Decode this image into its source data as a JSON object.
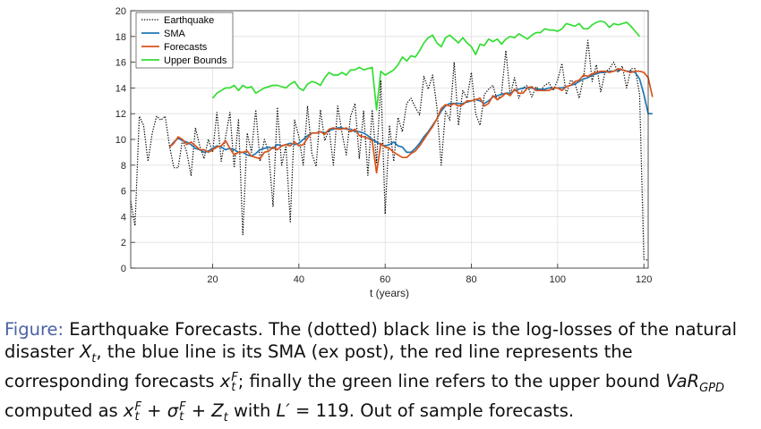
{
  "chart_data": {
    "type": "line",
    "xlabel": "t (years)",
    "ylabel": "",
    "xlim": [
      1,
      121
    ],
    "ylim": [
      0,
      20
    ],
    "x_ticks": [
      20,
      40,
      60,
      80,
      100,
      120
    ],
    "y_ticks": [
      0,
      2,
      4,
      6,
      8,
      10,
      12,
      14,
      16,
      18,
      20
    ],
    "grid": true,
    "legend_position": "top-left",
    "series": [
      {
        "name": "Earthquake",
        "color": "#000000",
        "style": "dotted",
        "x_start": 1,
        "values": [
          5.2,
          3.3,
          11.8,
          11.1,
          8.3,
          10.5,
          11.8,
          11.5,
          11.8,
          9.5,
          7.8,
          7.8,
          10.0,
          9.0,
          7.2,
          10.9,
          9.5,
          8.5,
          10.0,
          9.0,
          12.1,
          8.3,
          10.2,
          12.1,
          7.8,
          11.6,
          2.6,
          10.5,
          9.0,
          12.3,
          8.3,
          10.0,
          9.0,
          4.8,
          12.5,
          8.0,
          9.5,
          3.6,
          11.5,
          10.2,
          8.0,
          12.6,
          8.9,
          7.9,
          12.3,
          9.9,
          10.8,
          8.0,
          12.6,
          10.5,
          8.8,
          11.8,
          12.8,
          8.5,
          12.2,
          7.2,
          12.3,
          8.2,
          14.6,
          4.2,
          11.1,
          8.3,
          11.7,
          10.6,
          12.8,
          13.2,
          12.5,
          11.9,
          14.9,
          13.9,
          15.0,
          12.5,
          8.0,
          12.2,
          11.5,
          16.0,
          11.1,
          13.8,
          13.2,
          15.2,
          12.0,
          11.1,
          13.5,
          13.9,
          14.2,
          13.0,
          13.6,
          16.9,
          13.4,
          14.8,
          13.2,
          14.0,
          14.2,
          13.3,
          14.1,
          13.8,
          14.2,
          14.4,
          13.8,
          14.6,
          15.9,
          13.5,
          14.6,
          14.4,
          13.2,
          14.8,
          17.7,
          14.5,
          15.8,
          13.7,
          15.2,
          15.5,
          16.0,
          15.2,
          15.7,
          14.0,
          15.5,
          15.5,
          13.5,
          0.7,
          0.6
        ]
      },
      {
        "name": "SMA",
        "color": "#1f77b4",
        "style": "solid",
        "x_start": 10,
        "values": [
          9.4,
          9.8,
          10.1,
          9.9,
          9.8,
          9.6,
          9.3,
          9.2,
          9.0,
          9.1,
          9.3,
          9.5,
          9.4,
          9.2,
          9.3,
          9.2,
          9.0,
          9.0,
          8.8,
          8.7,
          8.9,
          9.2,
          9.3,
          9.4,
          9.3,
          9.6,
          9.5,
          9.6,
          9.7,
          9.6,
          9.7,
          10.0,
          10.3,
          10.5,
          10.5,
          10.6,
          10.5,
          10.7,
          10.8,
          10.9,
          10.9,
          10.8,
          10.8,
          10.6,
          10.6,
          10.5,
          10.3,
          10.0,
          9.8,
          9.6,
          9.5,
          9.6,
          9.8,
          9.5,
          9.4,
          9.0,
          9.0,
          9.3,
          9.7,
          10.2,
          10.6,
          11.1,
          11.6,
          12.2,
          12.6,
          12.8,
          12.8,
          12.8,
          12.8,
          12.9,
          13.0,
          13.1,
          13.0,
          12.8,
          13.0,
          13.3,
          13.4,
          13.5,
          13.6,
          13.6,
          13.8,
          13.9,
          14.0,
          14.0,
          14.0,
          13.9,
          13.9,
          13.9,
          14.0,
          14.0,
          14.0,
          14.0,
          14.1,
          14.2,
          14.3,
          14.5,
          14.7,
          14.8,
          15.0,
          15.1,
          15.2,
          15.2,
          15.3,
          15.3,
          15.4,
          15.4,
          15.3,
          15.3,
          15.2,
          14.7,
          13.5,
          12.0,
          12.0
        ]
      },
      {
        "name": "Forecasts",
        "color": "#d95319",
        "style": "solid",
        "x_start": 10,
        "values": [
          9.4,
          9.7,
          10.2,
          10.0,
          9.6,
          9.8,
          9.5,
          9.2,
          9.2,
          9.0,
          9.2,
          9.4,
          9.5,
          9.9,
          9.3,
          8.8,
          9.0,
          9.0,
          9.1,
          8.7,
          8.6,
          8.5,
          9.0,
          9.1,
          9.4,
          9.2,
          9.5,
          9.6,
          9.5,
          9.8,
          9.5,
          9.6,
          10.1,
          10.5,
          10.5,
          10.6,
          10.4,
          10.8,
          10.9,
          10.8,
          10.8,
          10.9,
          10.6,
          10.8,
          10.3,
          10.2,
          10.1,
          9.9,
          7.4,
          9.7,
          9.4,
          9.3,
          9.0,
          8.8,
          8.6,
          8.6,
          8.9,
          9.1,
          9.5,
          10.0,
          10.5,
          11.0,
          11.6,
          12.4,
          12.7,
          12.6,
          12.8,
          12.6,
          12.7,
          13.0,
          13.0,
          13.1,
          13.2,
          12.6,
          12.8,
          13.4,
          13.1,
          13.3,
          13.6,
          13.4,
          13.9,
          13.6,
          13.6,
          14.0,
          14.1,
          13.8,
          13.8,
          13.8,
          13.8,
          14.0,
          14.0,
          13.8,
          14.1,
          14.2,
          14.5,
          14.6,
          15.0,
          14.9,
          15.1,
          15.2,
          15.3,
          15.3,
          15.2,
          15.3,
          15.5,
          15.4,
          15.3,
          15.2,
          15.3,
          15.3,
          15.2,
          14.8,
          13.3
        ]
      },
      {
        "name": "Upper Bounds",
        "color": "#33dd33",
        "style": "solid",
        "x_start": 20,
        "values": [
          13.2,
          13.6,
          13.8,
          14.0,
          14.0,
          14.2,
          13.8,
          14.2,
          14.0,
          14.1,
          13.6,
          13.8,
          14.0,
          14.1,
          14.2,
          14.2,
          14.1,
          14.0,
          14.3,
          14.5,
          14.0,
          13.8,
          14.3,
          14.5,
          14.4,
          14.2,
          14.8,
          15.2,
          15.0,
          15.0,
          15.2,
          15.0,
          15.4,
          15.4,
          15.6,
          15.4,
          15.5,
          15.6,
          12.3,
          15.3,
          15.0,
          15.2,
          15.4,
          15.8,
          16.4,
          16.1,
          16.5,
          16.4,
          16.9,
          17.5,
          17.9,
          18.1,
          17.5,
          17.2,
          17.9,
          18.1,
          17.8,
          17.5,
          17.9,
          17.5,
          17.2,
          16.6,
          17.4,
          17.3,
          17.8,
          17.6,
          17.8,
          17.4,
          17.8,
          18.0,
          17.9,
          18.2,
          18.0,
          17.8,
          18.1,
          18.3,
          18.3,
          18.6,
          18.5,
          18.5,
          18.4,
          18.6,
          19.0,
          18.9,
          18.8,
          19.0,
          18.6,
          18.6,
          18.9,
          19.1,
          19.2,
          19.1,
          18.7,
          19.0,
          18.9,
          19.0,
          19.1,
          18.8,
          18.4,
          18.0
        ]
      }
    ]
  },
  "caption": {
    "lead": "Figure:",
    "p1": " Earthquake Forecasts. The (dotted) black line is the log-losses of the natural disaster ",
    "x_t_base": "X",
    "x_t_sub": "t",
    "p2": ", the blue line is its SMA (ex post), the red line represents the corresponding forecasts ",
    "xf_base": "x",
    "xf_sup": "F",
    "xf_sub": "t",
    "p3": "; finally the green line refers to the upper bound ",
    "var_base": "VaR",
    "var_sub": "GPD",
    "p4": " computed as ",
    "f1_base": "x",
    "f1_sup": "F",
    "f1_sub": "t",
    "f_plus1": " + ",
    "f2_base": "σ",
    "f2_sup": "F",
    "f2_sub": "t",
    "f_plus2": " + ",
    "f3_base": "Z",
    "f3_sub": "t",
    "p5": " with ",
    "lp": "L′",
    "p6": " = 119. Out of sample forecasts."
  }
}
